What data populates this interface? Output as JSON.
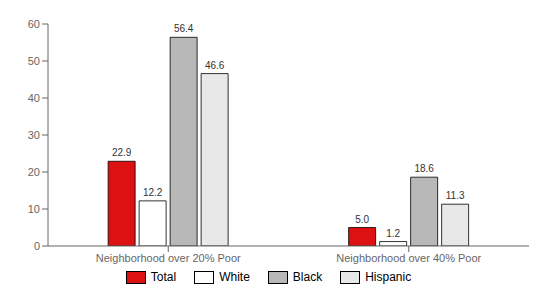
{
  "chart_data": {
    "type": "bar",
    "categories": [
      "Neighborhood over 20% Poor",
      "Neighborhood over 40% Poor"
    ],
    "series": [
      {
        "name": "Total",
        "color": "#dd1111",
        "values": [
          22.9,
          5.0
        ],
        "value_labels": [
          "22.9",
          "5.0"
        ]
      },
      {
        "name": "White",
        "color": "#ffffff",
        "values": [
          12.2,
          1.2
        ]
      },
      {
        "name": "Black",
        "color": "#b8b8b8",
        "values": [
          56.4,
          18.6
        ]
      },
      {
        "name": "Hispanic",
        "color": "#e8e8e8",
        "values": [
          46.6,
          11.3
        ]
      }
    ],
    "ylim": [
      0,
      60
    ],
    "yticks": [
      0,
      10,
      20,
      30,
      40,
      50,
      60
    ],
    "data_labels": true,
    "grid": false,
    "legend": "bottom"
  }
}
